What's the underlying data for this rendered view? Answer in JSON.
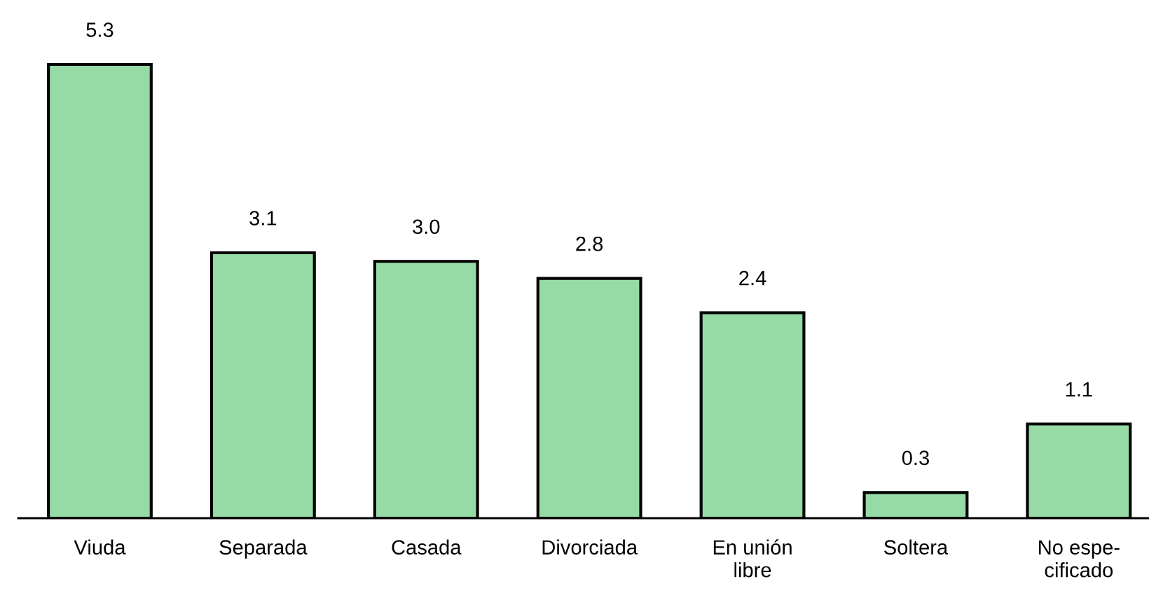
{
  "chart_data": {
    "type": "bar",
    "categories": [
      "Viuda",
      "Separada",
      "Casada",
      "Divorciada",
      "En unión\nlibre",
      "Soltera",
      "No espe-\ncificado"
    ],
    "values": [
      5.3,
      3.1,
      3.0,
      2.8,
      2.4,
      0.3,
      1.1
    ],
    "value_labels": [
      "5.3",
      "3.1",
      "3.0",
      "2.8",
      "2.4",
      "0.3",
      "1.1"
    ],
    "color": "#96dba6",
    "grid": false,
    "legend": false,
    "tick_labels": "x"
  }
}
